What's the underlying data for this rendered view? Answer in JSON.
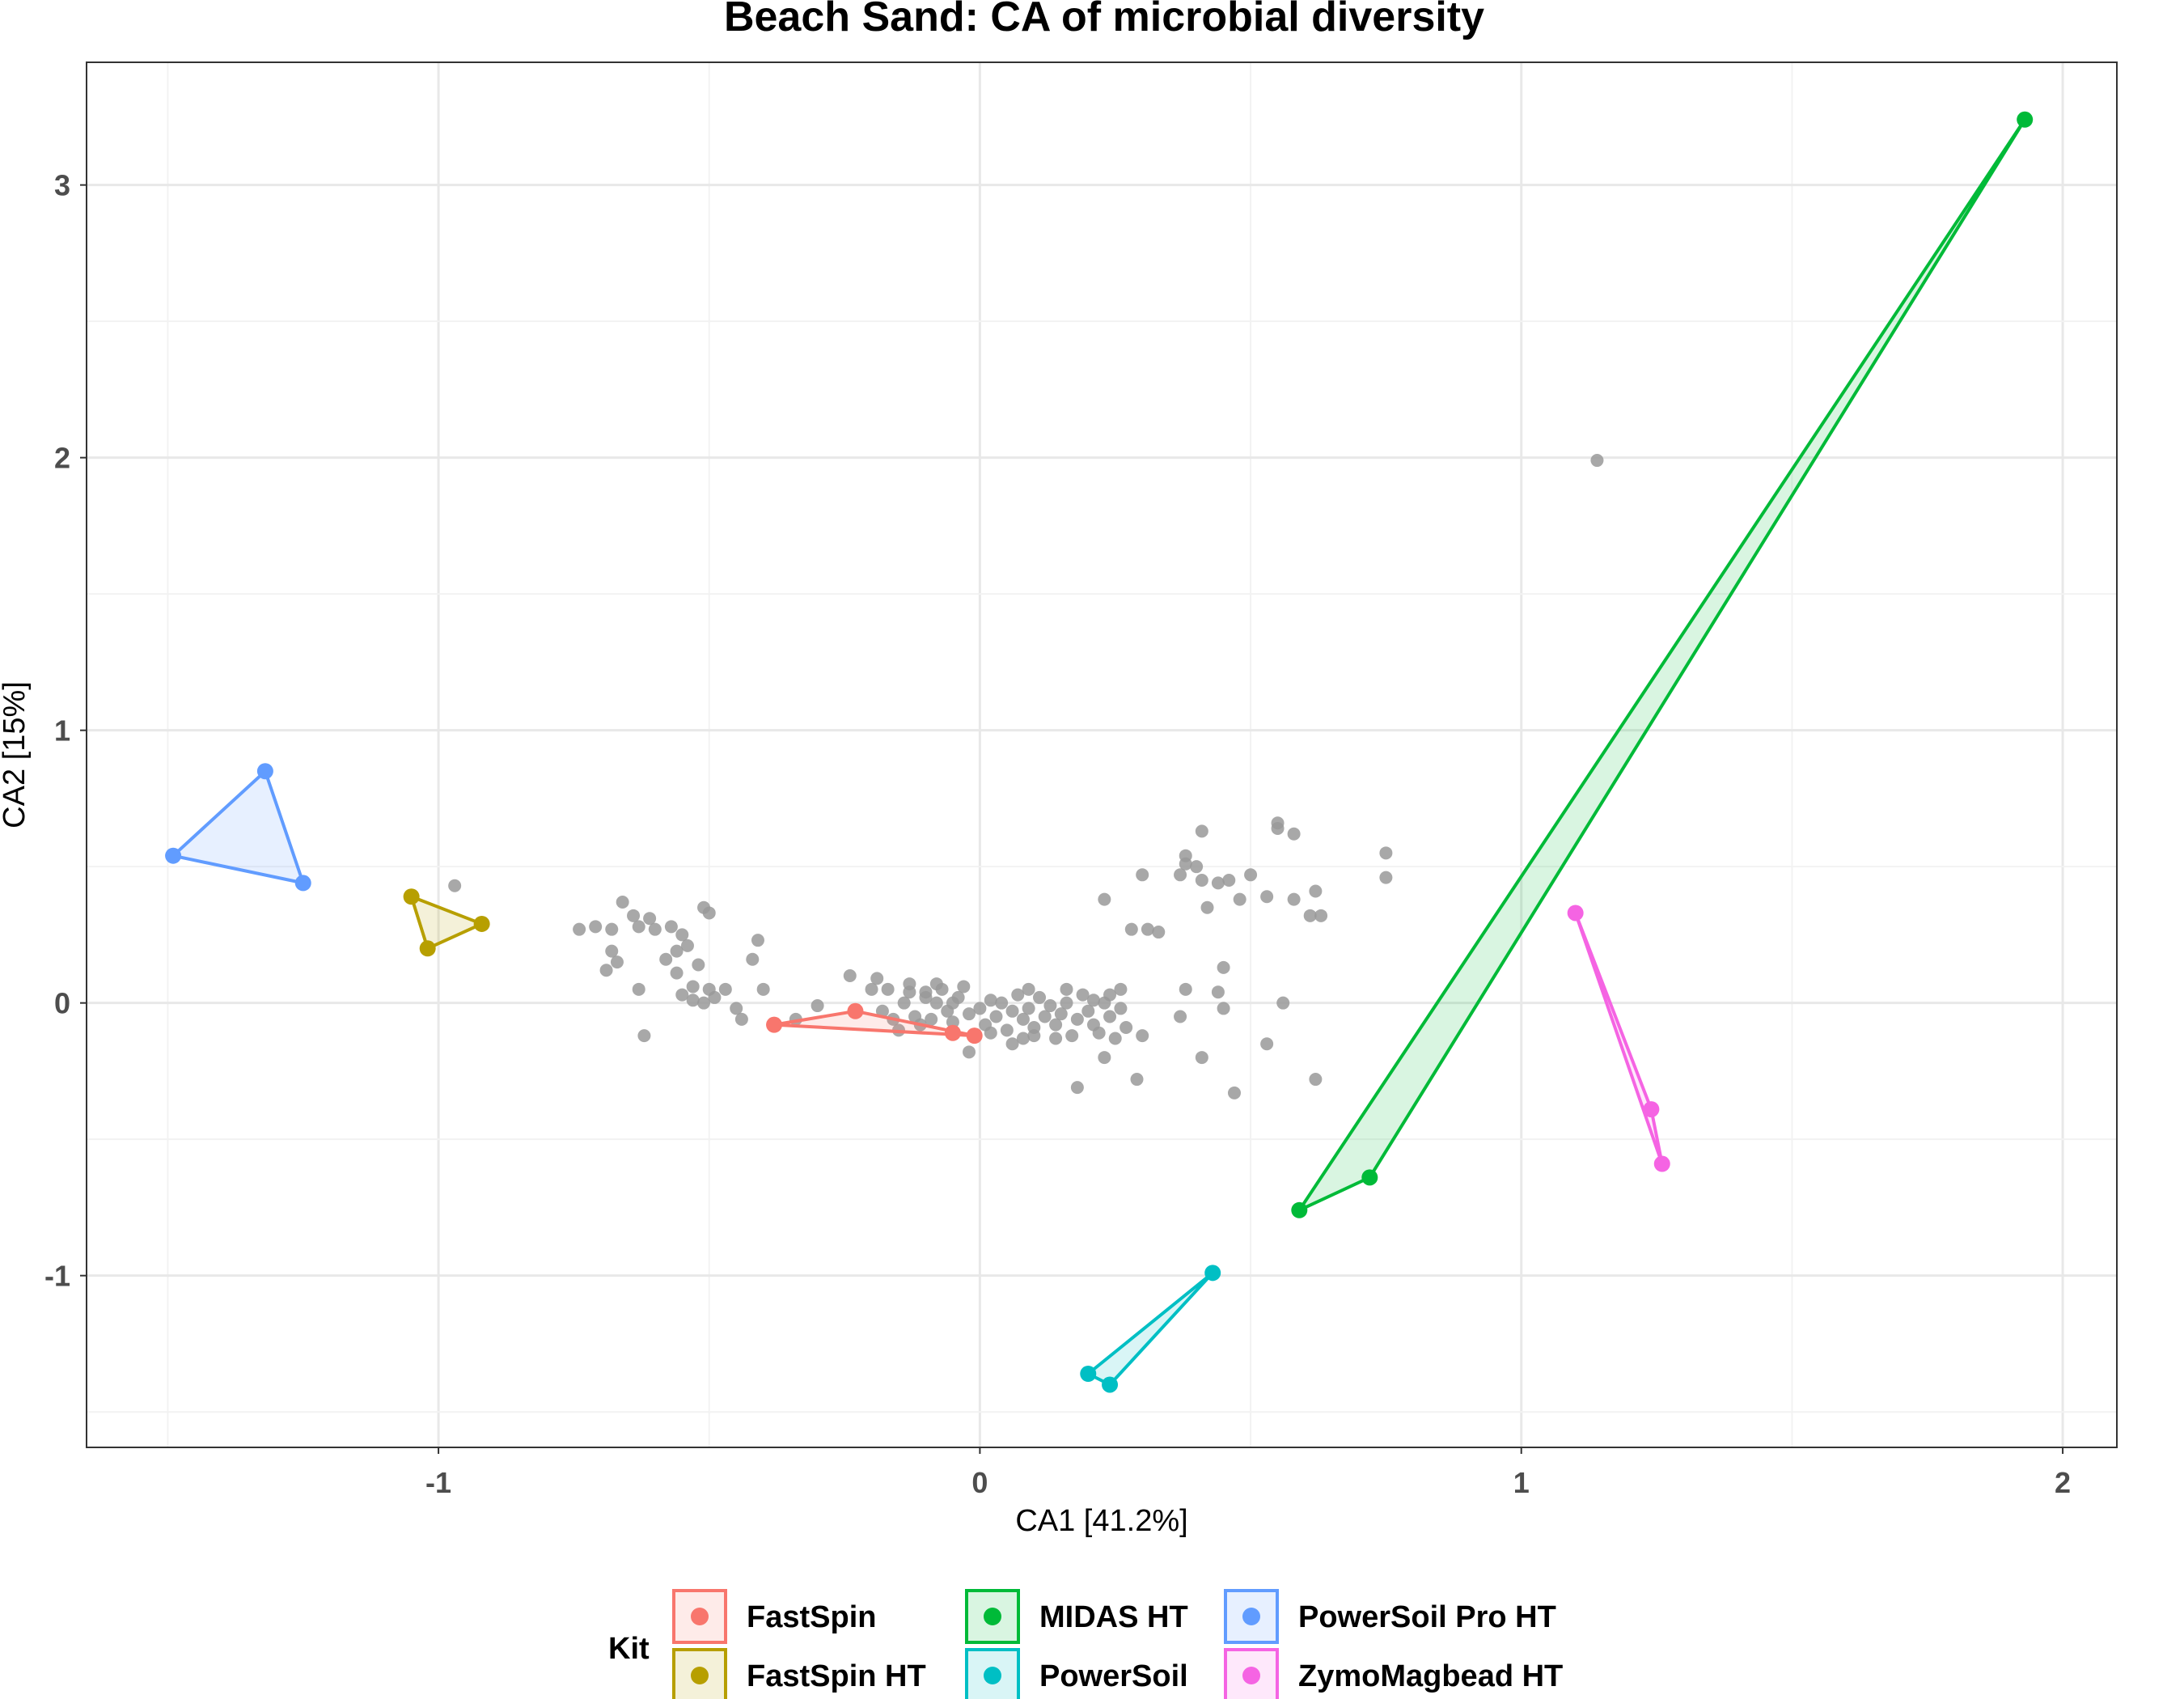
{
  "chart_data": {
    "type": "scatter",
    "title": "Beach Sand: CA of microbial diversity",
    "xlabel": "CA1 [41.2%]",
    "ylabel": "CA2 [15%]",
    "xlim": [
      -1.65,
      2.1
    ],
    "ylim": [
      -1.63,
      3.45
    ],
    "xticks": [
      -1,
      0,
      1,
      2
    ],
    "xtick_labels": [
      "-1",
      "0",
      "1",
      "2"
    ],
    "yticks": [
      -1,
      0,
      1,
      2,
      3
    ],
    "ytick_labels": [
      "-1",
      "0",
      "1",
      "2",
      "3"
    ],
    "grid": true,
    "legend": {
      "title": "Kit",
      "position": "bottom"
    },
    "series": [
      {
        "name": "FastSpin",
        "color": "#F8766D",
        "points": [
          [
            -0.38,
            -0.08
          ],
          [
            -0.23,
            -0.03
          ],
          [
            -0.05,
            -0.11
          ],
          [
            -0.01,
            -0.12
          ]
        ]
      },
      {
        "name": "FastSpin HT",
        "color": "#B79F00",
        "points": [
          [
            -1.05,
            0.39
          ],
          [
            -1.02,
            0.2
          ],
          [
            -0.92,
            0.29
          ]
        ]
      },
      {
        "name": "MIDAS HT",
        "color": "#00BA38",
        "points": [
          [
            0.59,
            -0.76
          ],
          [
            0.72,
            -0.64
          ],
          [
            1.93,
            3.24
          ]
        ]
      },
      {
        "name": "PowerSoil",
        "color": "#00BFC4",
        "points": [
          [
            0.2,
            -1.36
          ],
          [
            0.24,
            -1.4
          ],
          [
            0.43,
            -0.99
          ]
        ]
      },
      {
        "name": "PowerSoil Pro HT",
        "color": "#619CFF",
        "points": [
          [
            -1.49,
            0.54
          ],
          [
            -1.32,
            0.85
          ],
          [
            -1.25,
            0.44
          ]
        ]
      },
      {
        "name": "ZymoMagbead HT",
        "color": "#F564E3",
        "points": [
          [
            1.1,
            0.33
          ],
          [
            1.24,
            -0.39
          ],
          [
            1.26,
            -0.59
          ]
        ]
      }
    ],
    "taxa_color": "#999999",
    "taxa": [
      [
        1.14,
        1.99
      ],
      [
        -0.61,
        0.31
      ],
      [
        -0.64,
        0.32
      ],
      [
        -0.63,
        0.28
      ],
      [
        -0.66,
        0.37
      ],
      [
        -0.68,
        0.27
      ],
      [
        -0.68,
        0.19
      ],
      [
        -0.67,
        0.15
      ],
      [
        -0.63,
        0.05
      ],
      [
        -0.62,
        -0.12
      ],
      [
        -0.58,
        0.16
      ],
      [
        -0.57,
        0.28
      ],
      [
        -0.55,
        0.25
      ],
      [
        -0.54,
        0.21
      ],
      [
        -0.52,
        0.14
      ],
      [
        -0.55,
        0.03
      ],
      [
        -0.53,
        0.01
      ],
      [
        -0.5,
        0.05
      ],
      [
        -0.49,
        0.02
      ],
      [
        -0.47,
        0.05
      ],
      [
        -0.45,
        -0.02
      ],
      [
        -0.44,
        -0.06
      ],
      [
        -0.42,
        0.16
      ],
      [
        -0.41,
        0.23
      ],
      [
        -0.4,
        0.05
      ],
      [
        -0.51,
        0.35
      ],
      [
        -0.5,
        0.33
      ],
      [
        -0.53,
        0.06
      ],
      [
        -0.56,
        0.19
      ],
      [
        -0.6,
        0.27
      ],
      [
        -0.71,
        0.28
      ],
      [
        -0.69,
        0.12
      ],
      [
        -0.74,
        0.27
      ],
      [
        -0.97,
        0.43
      ],
      [
        -0.56,
        0.11
      ],
      [
        -0.51,
        0.0
      ],
      [
        -0.34,
        -0.06
      ],
      [
        -0.3,
        -0.01
      ],
      [
        -0.24,
        0.1
      ],
      [
        -0.2,
        0.05
      ],
      [
        -0.19,
        0.09
      ],
      [
        -0.18,
        -0.03
      ],
      [
        -0.16,
        -0.06
      ],
      [
        -0.15,
        -0.1
      ],
      [
        -0.14,
        0.0
      ],
      [
        -0.13,
        0.04
      ],
      [
        -0.12,
        -0.05
      ],
      [
        -0.11,
        -0.08
      ],
      [
        -0.1,
        0.02
      ],
      [
        -0.09,
        -0.06
      ],
      [
        -0.08,
        0.0
      ],
      [
        -0.07,
        0.05
      ],
      [
        -0.06,
        -0.03
      ],
      [
        -0.05,
        -0.07
      ],
      [
        -0.04,
        0.02
      ],
      [
        -0.03,
        0.06
      ],
      [
        -0.02,
        -0.04
      ],
      [
        0.0,
        -0.02
      ],
      [
        0.01,
        -0.08
      ],
      [
        0.02,
        0.01
      ],
      [
        0.03,
        -0.05
      ],
      [
        0.04,
        0.0
      ],
      [
        0.05,
        -0.1
      ],
      [
        0.06,
        -0.03
      ],
      [
        0.07,
        0.03
      ],
      [
        0.08,
        -0.06
      ],
      [
        0.09,
        -0.02
      ],
      [
        0.1,
        -0.09
      ],
      [
        0.11,
        0.02
      ],
      [
        0.12,
        -0.05
      ],
      [
        0.13,
        -0.01
      ],
      [
        0.14,
        -0.08
      ],
      [
        0.15,
        -0.04
      ],
      [
        0.16,
        0.0
      ],
      [
        0.17,
        -0.12
      ],
      [
        0.18,
        -0.06
      ],
      [
        0.19,
        0.03
      ],
      [
        0.2,
        -0.03
      ],
      [
        0.21,
        -0.08
      ],
      [
        0.22,
        -0.11
      ],
      [
        0.23,
        0.0
      ],
      [
        0.24,
        -0.05
      ],
      [
        0.25,
        -0.13
      ],
      [
        0.26,
        -0.02
      ],
      [
        0.27,
        -0.09
      ],
      [
        0.08,
        -0.13
      ],
      [
        0.1,
        -0.12
      ],
      [
        0.14,
        -0.13
      ],
      [
        -0.02,
        -0.18
      ],
      [
        0.06,
        -0.15
      ],
      [
        -0.1,
        0.04
      ],
      [
        -0.13,
        0.07
      ],
      [
        -0.17,
        0.05
      ],
      [
        -0.08,
        0.07
      ],
      [
        0.09,
        0.05
      ],
      [
        0.16,
        0.05
      ],
      [
        0.24,
        0.03
      ],
      [
        0.02,
        -0.11
      ],
      [
        0.18,
        -0.31
      ],
      [
        0.23,
        -0.2
      ],
      [
        0.3,
        -0.12
      ],
      [
        0.29,
        -0.28
      ],
      [
        0.37,
        -0.05
      ],
      [
        0.41,
        -0.2
      ],
      [
        0.47,
        -0.33
      ],
      [
        0.53,
        -0.15
      ],
      [
        0.62,
        -0.28
      ],
      [
        0.45,
        -0.02
      ],
      [
        0.44,
        0.04
      ],
      [
        0.45,
        0.13
      ],
      [
        0.56,
        0.0
      ],
      [
        0.23,
        0.38
      ],
      [
        0.28,
        0.27
      ],
      [
        0.31,
        0.27
      ],
      [
        0.3,
        0.47
      ],
      [
        0.33,
        0.26
      ],
      [
        0.38,
        0.54
      ],
      [
        0.38,
        0.51
      ],
      [
        0.37,
        0.47
      ],
      [
        0.4,
        0.5
      ],
      [
        0.41,
        0.45
      ],
      [
        0.42,
        0.35
      ],
      [
        0.44,
        0.44
      ],
      [
        0.46,
        0.45
      ],
      [
        0.48,
        0.38
      ],
      [
        0.5,
        0.47
      ],
      [
        0.53,
        0.39
      ],
      [
        0.55,
        0.66
      ],
      [
        0.55,
        0.64
      ],
      [
        0.58,
        0.38
      ],
      [
        0.58,
        0.62
      ],
      [
        0.61,
        0.32
      ],
      [
        0.62,
        0.41
      ],
      [
        0.63,
        0.32
      ],
      [
        0.41,
        0.63
      ],
      [
        0.75,
        0.55
      ],
      [
        0.75,
        0.46
      ],
      [
        0.38,
        0.05
      ],
      [
        0.21,
        0.01
      ],
      [
        0.26,
        0.05
      ],
      [
        -0.05,
        0.0
      ]
    ]
  }
}
